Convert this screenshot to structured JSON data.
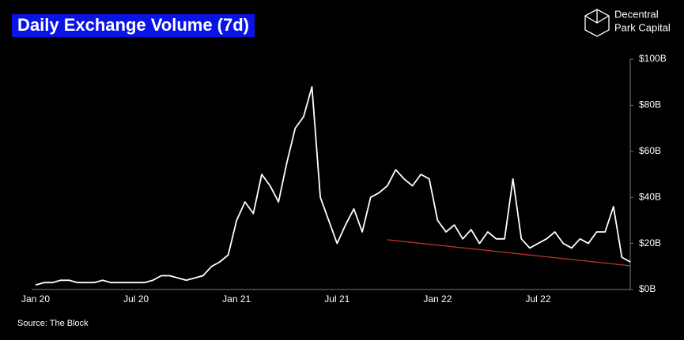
{
  "chart_data": {
    "type": "line",
    "title": "Daily Exchange Volume (7d)",
    "brand": [
      "Decentral",
      "Park Capital"
    ],
    "source": "Source: The Block",
    "categories": [
      "Jan 20",
      null,
      null,
      null,
      null,
      null,
      null,
      null,
      null,
      null,
      null,
      null,
      "Jul 20",
      null,
      null,
      null,
      null,
      null,
      null,
      null,
      null,
      null,
      null,
      null,
      "Jan 21",
      null,
      null,
      null,
      null,
      null,
      null,
      null,
      null,
      null,
      null,
      null,
      "Jul 21",
      null,
      null,
      null,
      null,
      null,
      null,
      null,
      null,
      null,
      null,
      null,
      "Jan 22",
      null,
      null,
      null,
      null,
      null,
      null,
      null,
      null,
      null,
      null,
      null,
      "Jul 22",
      null,
      null,
      null,
      null,
      null,
      null,
      null,
      null,
      null,
      null,
      null
    ],
    "series": [
      {
        "color": "#ffffff",
        "values": [
          2,
          3,
          3,
          4,
          4,
          3,
          3,
          3,
          4,
          3,
          3,
          3,
          3,
          3,
          4,
          6,
          6,
          5,
          4,
          5,
          6,
          10,
          12,
          15,
          30,
          38,
          33,
          50,
          45,
          38,
          55,
          70,
          75,
          88,
          40,
          30,
          20,
          28,
          35,
          25,
          40,
          42,
          45,
          52,
          48,
          45,
          50,
          48,
          30,
          25,
          28,
          22,
          26,
          20,
          25,
          22,
          22,
          48,
          22,
          18,
          20,
          22,
          25,
          20,
          18,
          22,
          20,
          25,
          25,
          36,
          14,
          12
        ]
      },
      {
        "color": "#c0392b",
        "values": [
          null,
          null,
          null,
          null,
          null,
          null,
          null,
          null,
          null,
          null,
          null,
          null,
          null,
          null,
          null,
          null,
          null,
          null,
          null,
          null,
          null,
          null,
          null,
          null,
          null,
          null,
          null,
          null,
          null,
          null,
          null,
          null,
          null,
          null,
          null,
          null,
          null,
          null,
          null,
          null,
          null,
          null,
          21.6,
          null,
          null,
          null,
          null,
          null,
          null,
          null,
          null,
          null,
          null,
          null,
          null,
          null,
          null,
          null,
          null,
          null,
          null,
          null,
          null,
          null,
          null,
          null,
          null,
          null,
          null,
          null,
          null,
          10.3
        ]
      }
    ],
    "ylim": [
      0,
      100
    ],
    "yticks": [
      {
        "value": 0,
        "label": "$0B"
      },
      {
        "value": 20,
        "label": "$20B"
      },
      {
        "value": 40,
        "label": "$40B"
      },
      {
        "value": 60,
        "label": "$60B"
      },
      {
        "value": 80,
        "label": "$80B"
      },
      {
        "value": 100,
        "label": "$100B"
      }
    ],
    "grid": false
  }
}
